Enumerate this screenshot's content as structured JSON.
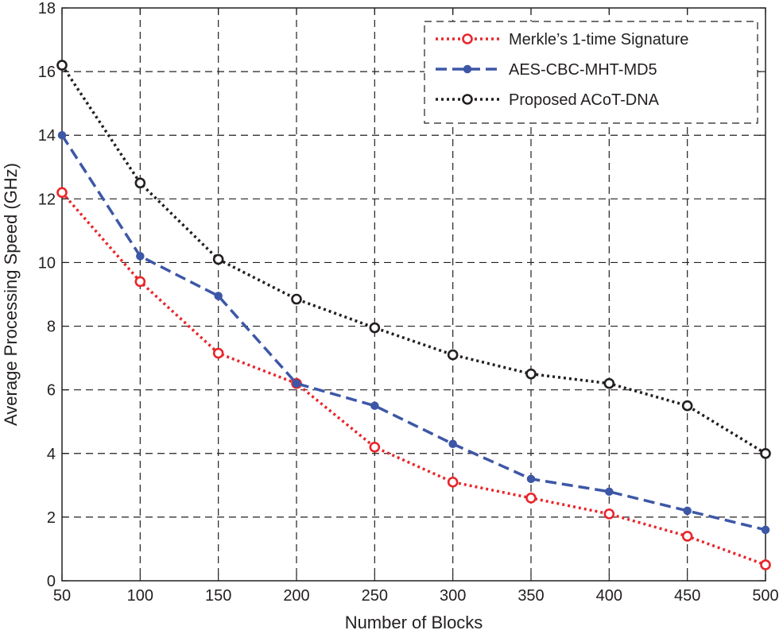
{
  "chart_data": {
    "type": "line",
    "title": "",
    "xlabel": "Number of Blocks",
    "ylabel": "Average Processing Speed (GHz)",
    "xlim": [
      50,
      500
    ],
    "ylim": [
      0,
      18
    ],
    "x_ticks": [
      "50",
      "100",
      "150",
      "200",
      "250",
      "300",
      "350",
      "400",
      "450",
      "500"
    ],
    "y_ticks": [
      "0",
      "2",
      "4",
      "6",
      "8",
      "10",
      "12",
      "14",
      "16",
      "18"
    ],
    "grid": true,
    "legend_position": "top-right",
    "x": [
      50,
      100,
      150,
      200,
      250,
      300,
      350,
      400,
      450,
      500
    ],
    "series": [
      {
        "name": "Merkle’s 1-time Signature",
        "color": "#e8262b",
        "line_style": "dotted",
        "marker": "open-circle",
        "values": [
          12.2,
          9.4,
          7.15,
          6.2,
          4.2,
          3.1,
          2.6,
          2.1,
          1.4,
          0.5
        ]
      },
      {
        "name": "AES-CBC-MHT-MD5",
        "color": "#3d57a7",
        "line_style": "dashed",
        "marker": "filled-circle",
        "values": [
          14.0,
          10.2,
          8.95,
          6.2,
          5.5,
          4.3,
          3.2,
          2.8,
          2.2,
          1.6
        ]
      },
      {
        "name": "Proposed ACoT-DNA",
        "color": "#231f20",
        "line_style": "dotted",
        "marker": "open-circle",
        "values": [
          16.2,
          12.5,
          10.1,
          8.85,
          7.95,
          7.1,
          6.5,
          6.2,
          5.5,
          4.0
        ]
      }
    ]
  }
}
